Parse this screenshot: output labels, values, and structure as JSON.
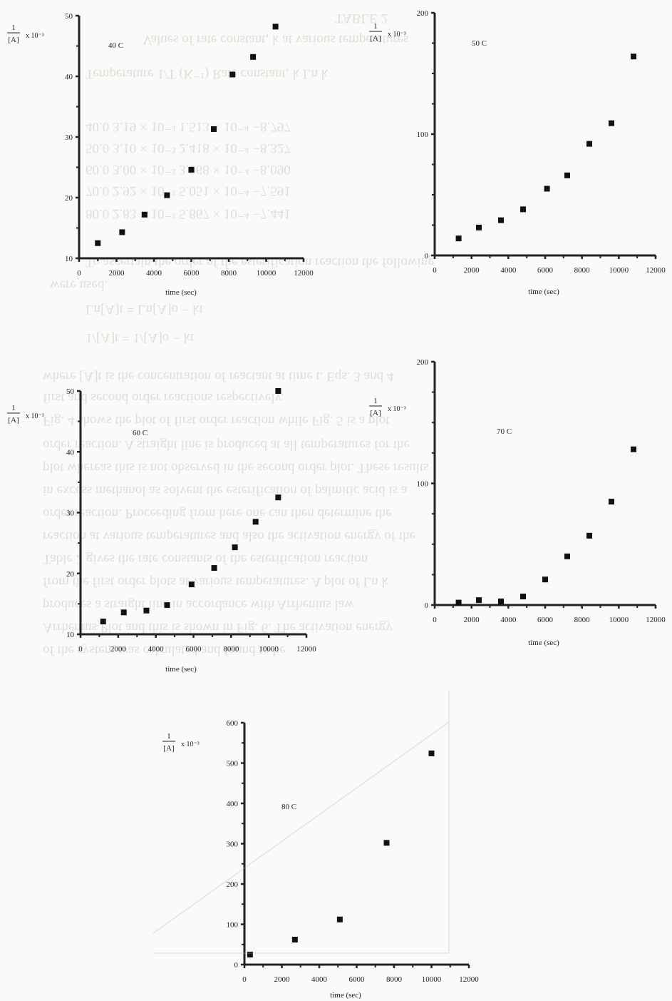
{
  "bleed_through": {
    "lines": [
      "TABLE 2",
      "Values of rate constant, k at various temperatures",
      "Temperature   1/T (K⁻¹)   Rate constant, k   Ln k",
      "40.0   3.19 × 10⁻³   1.513 × 10⁻⁴   −8.797",
      "50.0   3.10 × 10⁻³   2.418 × 10⁻⁴   −8.327",
      "60.0   3.00 × 10⁻³   3.068 × 10⁻⁴   −8.090",
      "70.0   2.92 × 10⁻³   5.051 × 10⁻⁴   −7.591",
      "80.0   2.83 × 10⁻³   5.867 × 10⁻⁴   −7.441",
      "To ascertain the order of the esterification reaction the following",
      "were used.",
      "Ln[A]t = Ln[A]o − kt",
      "1/[A]t = 1/[A]o − kt",
      "where [A]t is the concentration of reactant at time t. Eqs. 3 and 4",
      "first and second order reactions respectively.",
      "Fig. 4 shows the plot of first order reaction while Fig. 5 is a plot",
      "order reaction. A straight line is produced at all temperatures for the",
      "plot whereas this is not observed in the second order plot. These results",
      "in excess methanol as solvent the esterification of palmitic acid is a",
      "order reaction. Proceeding from here one can then determine the",
      "reaction at various temperatures and also the activation energy of the",
      "Table 2 gives the rate constants of the esterification reaction",
      "from the first order plots at various temperatures. A plot of Ln k",
      "produces a straight line in accordance with Arrhenius law",
      "Arrhenius Plot and this is shown in Fig. 6. The activation energy",
      "of the system was calculated and found to be"
    ]
  },
  "chart_data": [
    {
      "type": "scatter",
      "annotation": "40 C",
      "ylabel": {
        "num": "1",
        "den": "[A]",
        "suffix": "x 10⁻³"
      },
      "xlabel": "time (sec)",
      "xlim": [
        0,
        12000
      ],
      "ylim": [
        10,
        50
      ],
      "xticks": [
        "0",
        "2000",
        "4000",
        "6000",
        "8000",
        "10000",
        "12000"
      ],
      "yticks": [
        "10",
        "20",
        "30",
        "40",
        "50"
      ],
      "x": [
        1000,
        2300,
        3500,
        4700,
        6000,
        7200,
        8200,
        9300,
        10500
      ],
      "y": [
        12.5,
        14.3,
        17.2,
        20.4,
        24.6,
        31.3,
        40.3,
        43.2,
        48.2
      ]
    },
    {
      "type": "scatter",
      "annotation": "50 C",
      "ylabel": {
        "num": "1",
        "den": "[A]",
        "suffix": "x 10⁻³"
      },
      "xlabel": "time (sec)",
      "xlim": [
        0,
        12000
      ],
      "ylim": [
        0,
        200
      ],
      "xticks": [
        "0",
        "2000",
        "4000",
        "6000",
        "8000",
        "10000",
        "12000"
      ],
      "yticks": [
        "0",
        "100",
        "200"
      ],
      "x": [
        1300,
        2400,
        3600,
        4800,
        6100,
        7200,
        8400,
        9600,
        10800
      ],
      "y": [
        14,
        23,
        29,
        38,
        55,
        66,
        92,
        109,
        164
      ]
    },
    {
      "type": "scatter",
      "annotation": "60 C",
      "ylabel": {
        "num": "1",
        "den": "[A]",
        "suffix": "x 10⁻³"
      },
      "xlabel": "time (sec)",
      "xlim": [
        0,
        12000
      ],
      "ylim": [
        10,
        50
      ],
      "xticks": [
        "0",
        "2000",
        "4000",
        "6000",
        "8000",
        "10000",
        "12000"
      ],
      "yticks": [
        "10",
        "20",
        "30",
        "40",
        "50"
      ],
      "x": [
        1200,
        2300,
        3500,
        4600,
        5900,
        7100,
        8200,
        9300,
        10500
      ],
      "y": [
        12.1,
        13.6,
        13.9,
        14.8,
        18.2,
        20.9,
        24.3,
        28.5,
        32.5
      ],
      "extra_point": {
        "x": 10500,
        "y": 50
      }
    },
    {
      "type": "scatter",
      "annotation": "70 C",
      "ylabel": {
        "num": "1",
        "den": "[A]",
        "suffix": "x 10⁻³"
      },
      "xlabel": "time (sec)",
      "xlim": [
        0,
        12000
      ],
      "ylim": [
        0,
        200
      ],
      "xticks": [
        "0",
        "2000",
        "4000",
        "6000",
        "8000",
        "10000",
        "12000"
      ],
      "yticks": [
        "0",
        "100",
        "200"
      ],
      "x": [
        1300,
        2400,
        3600,
        4800,
        6000,
        7200,
        8400,
        9600,
        10800
      ],
      "y": [
        2,
        4,
        3,
        7,
        21,
        40,
        57,
        85,
        128
      ]
    },
    {
      "type": "scatter",
      "annotation": "80 C",
      "ylabel": {
        "num": "1",
        "den": "[A]",
        "suffix": "x 10⁻³"
      },
      "xlabel": "time (sec)",
      "xlim": [
        0,
        12000
      ],
      "ylim": [
        0,
        600
      ],
      "xticks": [
        "0",
        "2000",
        "4000",
        "6000",
        "8000",
        "10000",
        "12000"
      ],
      "yticks": [
        "0",
        "100",
        "200",
        "300",
        "400",
        "500",
        "600"
      ],
      "x": [
        300,
        2700,
        5100,
        7600,
        10000
      ],
      "y": [
        25,
        62,
        112,
        302,
        524
      ]
    }
  ]
}
